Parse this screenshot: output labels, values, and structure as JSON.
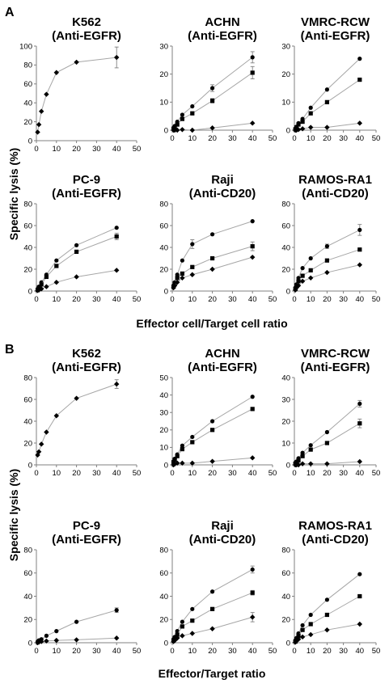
{
  "figure": {
    "panel_A": {
      "letter": "A",
      "ylabel": "Specific lysis (%)",
      "xlabel": "Effector cell/Target cell ratio"
    },
    "panel_B": {
      "letter": "B",
      "ylabel": "Specific lysis (%)",
      "xlabel": "Effector/Target ratio"
    }
  },
  "chart_data": [
    {
      "panel": "A",
      "type": "line",
      "title": [
        "K562",
        "(Anti-EGFR)"
      ],
      "xlim": [
        0,
        50
      ],
      "ylim": [
        0,
        100
      ],
      "xticks": [
        0,
        10,
        20,
        30,
        40,
        50
      ],
      "yticks": [
        0,
        20,
        40,
        60,
        80,
        100
      ],
      "series": [
        {
          "marker": "diamond",
          "x": [
            0.625,
            1.25,
            2.5,
            5,
            10,
            20,
            40
          ],
          "y": [
            9,
            17,
            31,
            49,
            72,
            83,
            88
          ],
          "err": [
            0,
            0,
            0,
            0,
            0,
            0,
            11
          ]
        }
      ]
    },
    {
      "panel": "A",
      "type": "line",
      "title": [
        "ACHN",
        "(Anti-EGFR)"
      ],
      "xlim": [
        0,
        50
      ],
      "ylim": [
        0,
        30
      ],
      "xticks": [
        0,
        10,
        20,
        30,
        40,
        50
      ],
      "yticks": [
        0,
        10,
        20,
        30
      ],
      "series": [
        {
          "marker": "circle",
          "x": [
            0.625,
            1.25,
            2.5,
            5,
            10,
            20,
            40
          ],
          "y": [
            0.8,
            1.5,
            3,
            5.5,
            8.5,
            15,
            26
          ],
          "err": [
            0,
            0,
            0,
            0,
            0,
            1.2,
            2
          ]
        },
        {
          "marker": "square",
          "x": [
            0.625,
            1.25,
            2.5,
            5,
            10,
            20,
            40
          ],
          "y": [
            0.5,
            1,
            2,
            4,
            6,
            10.5,
            20.5
          ],
          "err": [
            0,
            0,
            0,
            0,
            0,
            0.8,
            2.2
          ]
        },
        {
          "marker": "diamond",
          "x": [
            0.625,
            1.25,
            2.5,
            5,
            10,
            20,
            40
          ],
          "y": [
            0,
            0,
            0,
            0.2,
            0,
            0.8,
            2.5
          ],
          "err": [
            0,
            0,
            0,
            0,
            0,
            0,
            0
          ]
        }
      ]
    },
    {
      "panel": "A",
      "type": "line",
      "title": [
        "VMRC-RCW",
        "(Anti-EGFR)"
      ],
      "xlim": [
        0,
        50
      ],
      "ylim": [
        0,
        30
      ],
      "xticks": [
        0,
        10,
        20,
        30,
        40,
        50
      ],
      "yticks": [
        0,
        10,
        20,
        30
      ],
      "series": [
        {
          "marker": "circle",
          "x": [
            0.625,
            1.25,
            2.5,
            5,
            10,
            20,
            40
          ],
          "y": [
            0.5,
            1.2,
            2.5,
            4,
            8,
            14.5,
            25.5
          ],
          "err": [
            0,
            0,
            0,
            0,
            0,
            0,
            0
          ]
        },
        {
          "marker": "square",
          "x": [
            0.625,
            1.25,
            2.5,
            5,
            10,
            20,
            40
          ],
          "y": [
            0.3,
            1,
            2,
            3,
            6,
            10,
            18
          ],
          "err": [
            0,
            0,
            0,
            0,
            0,
            0,
            0
          ]
        },
        {
          "marker": "diamond",
          "x": [
            0.625,
            1.25,
            2.5,
            5,
            10,
            20,
            40
          ],
          "y": [
            0,
            0,
            0.2,
            0.5,
            1,
            1,
            2.5
          ],
          "err": [
            0,
            0,
            0,
            0,
            0,
            0,
            0
          ]
        }
      ]
    },
    {
      "panel": "A",
      "type": "line",
      "title": [
        "PC-9",
        "(Anti-EGFR)"
      ],
      "xlim": [
        0,
        50
      ],
      "ylim": [
        0,
        80
      ],
      "xticks": [
        0,
        10,
        20,
        30,
        40,
        50
      ],
      "yticks": [
        0,
        20,
        40,
        60,
        80
      ],
      "series": [
        {
          "marker": "circle",
          "x": [
            0.625,
            1.25,
            2.5,
            5,
            10,
            20,
            40
          ],
          "y": [
            2,
            4,
            8,
            15,
            28,
            42,
            58
          ],
          "err": [
            0,
            0,
            0,
            0,
            0,
            0,
            0
          ]
        },
        {
          "marker": "square",
          "x": [
            0.625,
            1.25,
            2.5,
            5,
            10,
            20,
            40
          ],
          "y": [
            1,
            3,
            6,
            13,
            23,
            36,
            50
          ],
          "err": [
            0,
            0,
            0,
            0,
            0,
            0,
            3
          ]
        },
        {
          "marker": "diamond",
          "x": [
            0.625,
            1.25,
            2.5,
            5,
            10,
            20,
            40
          ],
          "y": [
            0.5,
            1,
            2,
            4,
            8,
            13,
            19
          ],
          "err": [
            0,
            0,
            0,
            0,
            0,
            0,
            0
          ]
        }
      ]
    },
    {
      "panel": "A",
      "type": "line",
      "title": [
        "Raji",
        "(Anti-CD20)"
      ],
      "xlim": [
        0,
        50
      ],
      "ylim": [
        0,
        80
      ],
      "xticks": [
        0,
        10,
        20,
        30,
        40,
        50
      ],
      "yticks": [
        0,
        20,
        40,
        60,
        80
      ],
      "series": [
        {
          "marker": "circle",
          "x": [
            0.625,
            1.25,
            2.5,
            5,
            10,
            20,
            40
          ],
          "y": [
            5,
            8,
            15,
            28,
            43,
            52,
            64
          ],
          "err": [
            0,
            0,
            0,
            0,
            4,
            0,
            0
          ]
        },
        {
          "marker": "square",
          "x": [
            0.625,
            1.25,
            2.5,
            5,
            10,
            20,
            40
          ],
          "y": [
            4,
            7,
            12,
            16,
            22,
            30,
            41
          ],
          "err": [
            0,
            0,
            0,
            0,
            0,
            0,
            4
          ]
        },
        {
          "marker": "diamond",
          "x": [
            0.625,
            1.25,
            2.5,
            5,
            10,
            20,
            40
          ],
          "y": [
            3,
            5,
            8,
            12,
            15,
            20,
            31
          ],
          "err": [
            0,
            0,
            0,
            0,
            0,
            0,
            0
          ]
        }
      ]
    },
    {
      "panel": "A",
      "type": "line",
      "title": [
        "RAMOS-RA1",
        "(Anti-CD20)"
      ],
      "xlim": [
        0,
        50
      ],
      "ylim": [
        0,
        80
      ],
      "xticks": [
        0,
        10,
        20,
        30,
        40,
        50
      ],
      "yticks": [
        0,
        20,
        40,
        60,
        80
      ],
      "series": [
        {
          "marker": "circle",
          "x": [
            0.625,
            1.25,
            2.5,
            5,
            10,
            20,
            40
          ],
          "y": [
            3,
            6,
            12,
            21,
            30,
            41,
            56
          ],
          "err": [
            0,
            0,
            0,
            0,
            0,
            2,
            5
          ]
        },
        {
          "marker": "square",
          "x": [
            0.625,
            1.25,
            2.5,
            5,
            10,
            20,
            40
          ],
          "y": [
            2,
            5,
            9,
            14,
            19,
            28,
            38
          ],
          "err": [
            0,
            0,
            0,
            0,
            0,
            0,
            0
          ]
        },
        {
          "marker": "diamond",
          "x": [
            0.625,
            1.25,
            2.5,
            5,
            10,
            20,
            40
          ],
          "y": [
            1,
            3,
            5,
            9,
            12,
            17,
            24
          ],
          "err": [
            0,
            0,
            0,
            0,
            0,
            0,
            0
          ]
        }
      ]
    },
    {
      "panel": "B",
      "type": "line",
      "title": [
        "K562",
        "(Anti-EGFR)"
      ],
      "xlim": [
        0,
        50
      ],
      "ylim": [
        0,
        80
      ],
      "xticks": [
        0,
        10,
        20,
        30,
        40,
        50
      ],
      "yticks": [
        0,
        20,
        40,
        60,
        80
      ],
      "series": [
        {
          "marker": "diamond",
          "x": [
            0.625,
            1.25,
            2.5,
            5,
            10,
            20,
            40
          ],
          "y": [
            9,
            12,
            19,
            30,
            45,
            61,
            74
          ],
          "err": [
            0,
            0,
            0,
            0,
            0,
            0,
            4
          ]
        }
      ]
    },
    {
      "panel": "B",
      "type": "line",
      "title": [
        "ACHN",
        "(Anti-EGFR)"
      ],
      "xlim": [
        0,
        50
      ],
      "ylim": [
        0,
        50
      ],
      "xticks": [
        0,
        10,
        20,
        30,
        40,
        50
      ],
      "yticks": [
        0,
        10,
        20,
        30,
        40,
        50
      ],
      "series": [
        {
          "marker": "circle",
          "x": [
            0.625,
            1.25,
            2.5,
            5,
            10,
            20,
            40
          ],
          "y": [
            2,
            3.5,
            6,
            11,
            16,
            25,
            39
          ],
          "err": [
            0,
            0,
            0,
            0,
            0,
            0,
            0
          ]
        },
        {
          "marker": "square",
          "x": [
            0.625,
            1.25,
            2.5,
            5,
            10,
            20,
            40
          ],
          "y": [
            1.5,
            3,
            5,
            9,
            13,
            20,
            32
          ],
          "err": [
            0,
            0,
            0,
            0,
            0,
            0,
            0
          ]
        },
        {
          "marker": "diamond",
          "x": [
            0.625,
            1.25,
            2.5,
            5,
            10,
            20,
            40
          ],
          "y": [
            0,
            0.5,
            1,
            1,
            1,
            2,
            4
          ],
          "err": [
            0,
            0,
            0,
            0,
            0,
            0,
            0
          ]
        }
      ]
    },
    {
      "panel": "B",
      "type": "line",
      "title": [
        "VMRC-RCW",
        "(Anti-EGFR)"
      ],
      "xlim": [
        0,
        50
      ],
      "ylim": [
        0,
        40
      ],
      "xticks": [
        0,
        10,
        20,
        30,
        40,
        50
      ],
      "yticks": [
        0,
        10,
        20,
        30,
        40
      ],
      "series": [
        {
          "marker": "circle",
          "x": [
            0.625,
            1.25,
            2.5,
            5,
            10,
            20,
            40
          ],
          "y": [
            1,
            1.5,
            3,
            5.5,
            9,
            15,
            28
          ],
          "err": [
            0,
            0,
            0,
            0,
            0,
            0,
            1.5
          ]
        },
        {
          "marker": "square",
          "x": [
            0.625,
            1.25,
            2.5,
            5,
            10,
            20,
            40
          ],
          "y": [
            0.5,
            1,
            2,
            4,
            7,
            10,
            19
          ],
          "err": [
            0,
            0,
            0,
            0,
            0,
            0,
            2
          ]
        },
        {
          "marker": "diamond",
          "x": [
            0.625,
            1.25,
            2.5,
            5,
            10,
            20,
            40
          ],
          "y": [
            0,
            0,
            0,
            0.5,
            0.5,
            0.5,
            1.5
          ],
          "err": [
            0,
            0,
            0,
            0,
            0,
            0,
            0
          ]
        }
      ]
    },
    {
      "panel": "B",
      "type": "line",
      "title": [
        "PC-9",
        "(Anti-EGFR)"
      ],
      "xlim": [
        0,
        50
      ],
      "ylim": [
        0,
        80
      ],
      "xticks": [
        0,
        10,
        20,
        30,
        40,
        50
      ],
      "yticks": [
        0,
        20,
        40,
        60,
        80
      ],
      "series": [
        {
          "marker": "circle",
          "x": [
            0.625,
            1.25,
            2.5,
            5,
            10,
            20,
            40
          ],
          "y": [
            1,
            2,
            3,
            6,
            10,
            18,
            28
          ],
          "err": [
            0,
            0,
            0,
            0,
            0,
            0,
            2
          ]
        },
        {
          "marker": "diamond",
          "x": [
            0.625,
            1.25,
            2.5,
            5,
            10,
            20,
            40
          ],
          "y": [
            0,
            0.5,
            1,
            1.5,
            2,
            2.5,
            4
          ],
          "err": [
            0,
            0,
            0,
            0,
            0,
            0,
            0
          ]
        }
      ]
    },
    {
      "panel": "B",
      "type": "line",
      "title": [
        "Raji",
        "(Anti-CD20)"
      ],
      "xlim": [
        0,
        50
      ],
      "ylim": [
        0,
        80
      ],
      "xticks": [
        0,
        10,
        20,
        30,
        40,
        50
      ],
      "yticks": [
        0,
        20,
        40,
        60,
        80
      ],
      "series": [
        {
          "marker": "circle",
          "x": [
            0.625,
            1.25,
            2.5,
            5,
            10,
            20,
            40
          ],
          "y": [
            3,
            5,
            10,
            18,
            29,
            44,
            63
          ],
          "err": [
            0,
            0,
            0,
            0,
            0,
            0,
            3
          ]
        },
        {
          "marker": "square",
          "x": [
            0.625,
            1.25,
            2.5,
            5,
            10,
            20,
            40
          ],
          "y": [
            2,
            4,
            7,
            14,
            19,
            29,
            43
          ],
          "err": [
            0,
            0,
            0,
            0,
            0,
            0,
            2
          ]
        },
        {
          "marker": "diamond",
          "x": [
            0.625,
            1.25,
            2.5,
            5,
            10,
            20,
            40
          ],
          "y": [
            1,
            2,
            4,
            6,
            8,
            12,
            22
          ],
          "err": [
            0,
            0,
            0,
            0,
            0,
            0,
            4
          ]
        }
      ]
    },
    {
      "panel": "B",
      "type": "line",
      "title": [
        "RAMOS-RA1",
        "(Anti-CD20)"
      ],
      "xlim": [
        0,
        50
      ],
      "ylim": [
        0,
        80
      ],
      "xticks": [
        0,
        10,
        20,
        30,
        40,
        50
      ],
      "yticks": [
        0,
        20,
        40,
        60,
        80
      ],
      "series": [
        {
          "marker": "circle",
          "x": [
            0.625,
            1.25,
            2.5,
            5,
            10,
            20,
            40
          ],
          "y": [
            2,
            4,
            8,
            15,
            24,
            37,
            59
          ],
          "err": [
            0,
            0,
            0,
            0,
            0,
            0,
            0
          ]
        },
        {
          "marker": "square",
          "x": [
            0.625,
            1.25,
            2.5,
            5,
            10,
            20,
            40
          ],
          "y": [
            1,
            3,
            6,
            11,
            16,
            24,
            40
          ],
          "err": [
            0,
            0,
            0,
            0,
            0,
            0,
            0
          ]
        },
        {
          "marker": "diamond",
          "x": [
            0.625,
            1.25,
            2.5,
            5,
            10,
            20,
            40
          ],
          "y": [
            0.5,
            1.5,
            3,
            5,
            7,
            11,
            16
          ],
          "err": [
            0,
            0,
            0,
            0,
            0,
            0,
            0
          ]
        }
      ]
    }
  ]
}
